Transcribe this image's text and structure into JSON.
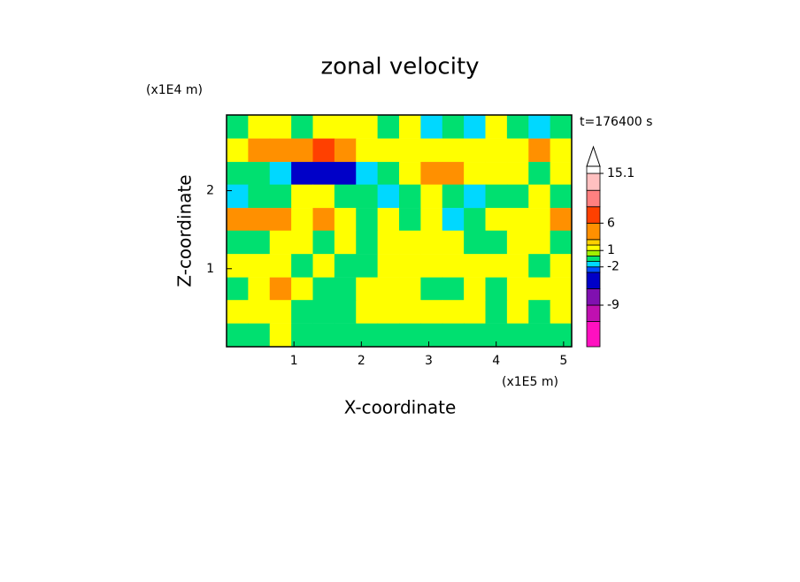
{
  "chart_data": {
    "type": "contour",
    "title": "zonal velocity",
    "xlabel": "X-coordinate",
    "ylabel": "Z-coordinate",
    "xunit": "(x1E5 m)",
    "yunit": "(x1E4 m)",
    "annotation": "t=176400 s",
    "xlim": [
      0,
      5.12
    ],
    "ylim": [
      0,
      2.97
    ],
    "xticks": [
      1,
      2,
      3,
      4,
      5
    ],
    "yticks": [
      1,
      2
    ],
    "x": [
      0.16,
      0.48,
      0.8,
      1.12,
      1.44,
      1.76,
      2.08,
      2.4,
      2.72,
      3.04,
      3.36,
      3.68,
      4.0,
      4.32,
      4.64,
      4.96
    ],
    "y": [
      2.82,
      2.52,
      2.22,
      1.93,
      1.63,
      1.34,
      1.04,
      0.74,
      0.45,
      0.15
    ],
    "values": [
      [
        -0.5,
        1.5,
        1.5,
        -0.5,
        1.5,
        1.5,
        1.5,
        -0.5,
        1.5,
        -1.5,
        -0.5,
        -1.5,
        1.5,
        -0.5,
        -1.5,
        -0.5
      ],
      [
        1.5,
        4,
        4,
        4,
        7,
        4,
        1.5,
        1.5,
        1.5,
        1.5,
        1.5,
        1.5,
        1.5,
        1.5,
        4,
        1.5
      ],
      [
        -0.5,
        -0.5,
        -1.5,
        -4,
        -4,
        -4,
        -1.5,
        -0.5,
        1.5,
        4,
        4,
        1.5,
        1.5,
        1.5,
        -0.5,
        1.5
      ],
      [
        -1.5,
        -0.5,
        -0.5,
        1.5,
        1.5,
        -0.5,
        -0.5,
        -1.5,
        -0.5,
        1.5,
        -0.5,
        -1.5,
        -0.5,
        -0.5,
        1.5,
        -0.5
      ],
      [
        4,
        4,
        4,
        1.5,
        4,
        1.5,
        -0.5,
        1.5,
        -0.5,
        1.5,
        -1.5,
        -0.5,
        1.5,
        1.5,
        1.5,
        4
      ],
      [
        -0.5,
        -0.5,
        1.5,
        1.5,
        -0.5,
        1.5,
        -0.5,
        1.5,
        1.5,
        1.5,
        1.5,
        -0.5,
        -0.5,
        1.5,
        1.5,
        -0.5
      ],
      [
        1.5,
        1.5,
        1.5,
        -0.5,
        1.5,
        -0.5,
        -0.5,
        1.5,
        1.5,
        1.5,
        1.5,
        1.5,
        1.5,
        1.5,
        -0.5,
        1.5
      ],
      [
        -0.5,
        1.5,
        4,
        1.5,
        -0.5,
        -0.5,
        1.5,
        1.5,
        1.5,
        -0.5,
        -0.5,
        1.5,
        -0.5,
        1.5,
        1.5,
        1.5
      ],
      [
        1.5,
        1.5,
        1.5,
        -0.5,
        -0.5,
        -0.5,
        1.5,
        1.5,
        1.5,
        1.5,
        1.5,
        1.5,
        -0.5,
        1.5,
        -0.5,
        1.5
      ],
      [
        -0.5,
        -0.5,
        1.5,
        -0.5,
        -0.5,
        -0.5,
        -0.5,
        -0.5,
        -0.5,
        -0.5,
        -0.5,
        -0.5,
        -0.5,
        -0.5,
        -0.5,
        -0.5
      ]
    ],
    "colorbar": {
      "clim": [
        -16.6,
        16.4
      ],
      "ticks": [
        -9,
        -2,
        1,
        6,
        15.1
      ],
      "levels": [
        -16.6,
        -12,
        -9,
        -6,
        -3,
        -2,
        -1,
        0,
        1,
        2,
        3,
        6,
        9,
        12,
        15.1,
        16.4
      ],
      "colors": [
        "#ff10c0",
        "#c010b0",
        "#8010b0",
        "#0000c8",
        "#0050ff",
        "#00d8ff",
        "#00e070",
        "#a0f000",
        "#ffff00",
        "#ffd000",
        "#ff9000",
        "#ff4000",
        "#ff8080",
        "#ffc0c0",
        "#ffffff"
      ]
    }
  }
}
